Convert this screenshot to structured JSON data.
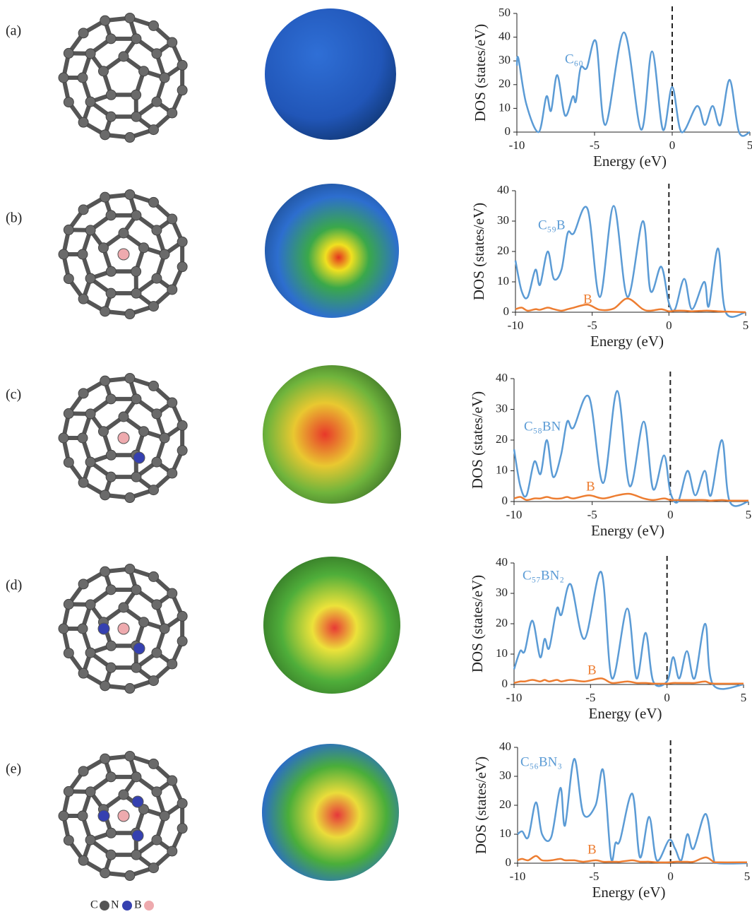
{
  "panels": [
    "(a)",
    "(b)",
    "(c)",
    "(d)",
    "(e)"
  ],
  "atom_legend": [
    "C",
    "N",
    "B"
  ],
  "chart_data": [
    {
      "type": "line",
      "xlabel": "Energy (eV)",
      "ylabel": "DOS (states/eV)",
      "xlim": [
        -10,
        5
      ],
      "xticks": [
        -10,
        -5,
        0,
        5
      ],
      "ylim": [
        0,
        50
      ],
      "yticks": [
        0,
        10,
        20,
        30,
        40,
        50
      ],
      "vline": 0,
      "x": [
        -10,
        -9.9,
        -9.4,
        -8.6,
        -8.1,
        -7.8,
        -7.4,
        -6.9,
        -6.4,
        -6.2,
        -5.9,
        -5.5,
        -4.9,
        -4.3,
        -3.1,
        -2.0,
        -1.3,
        -0.6,
        0,
        0.6,
        1.6,
        2.1,
        2.6,
        3.1,
        3.7,
        4.3,
        5
      ],
      "series": [
        {
          "name": "C₆₀",
          "color": "#5b9bd5",
          "values": [
            28,
            31,
            12,
            0,
            15,
            9,
            24,
            7,
            15,
            13,
            27,
            27,
            38,
            3,
            42,
            1,
            34,
            1,
            19,
            0,
            11,
            3,
            11,
            3,
            22,
            0,
            0
          ]
        }
      ]
    },
    {
      "type": "line",
      "xlabel": "Energy (eV)",
      "ylabel": "DOS (states/eV)",
      "xlim": [
        -10,
        5
      ],
      "xticks": [
        -10,
        -5,
        0,
        5
      ],
      "ylim": [
        0,
        40
      ],
      "yticks": [
        0,
        10,
        20,
        30,
        40
      ],
      "vline": 0,
      "x": [
        -10,
        -9.6,
        -9.2,
        -8.7,
        -8.4,
        -7.9,
        -7.5,
        -7.0,
        -6.6,
        -6.2,
        -5.3,
        -4.5,
        -3.6,
        -2.7,
        -1.7,
        -1.2,
        -0.5,
        0,
        0.4,
        1.0,
        1.5,
        2.3,
        2.6,
        3.2,
        3.7,
        5
      ],
      "series": [
        {
          "name": "C₅₉B",
          "color": "#5b9bd5",
          "values": [
            17,
            7,
            5,
            14,
            9,
            20,
            11,
            14,
            26,
            26,
            34,
            5,
            35,
            5,
            30,
            7,
            15,
            3,
            1,
            11,
            1,
            10,
            2,
            21,
            0,
            0
          ]
        },
        {
          "name": "B",
          "color": "#ed7d31",
          "values": [
            1,
            1.5,
            0.5,
            1,
            0.8,
            1.5,
            1,
            0.5,
            1,
            1.5,
            2.5,
            0.8,
            1.2,
            4.5,
            1,
            0.5,
            1,
            0.3,
            0.5,
            0.5,
            0.3,
            0.5,
            0.5,
            0.3,
            0.2,
            0
          ]
        }
      ]
    },
    {
      "type": "line",
      "xlabel": "Energy (eV)",
      "ylabel": "DOS (states/eV)",
      "xlim": [
        -10,
        5
      ],
      "xticks": [
        -10,
        -5,
        0,
        5
      ],
      "ylim": [
        0,
        40
      ],
      "yticks": [
        0,
        10,
        20,
        30,
        40
      ],
      "vline": 0,
      "x": [
        -10,
        -9.6,
        -9.2,
        -8.7,
        -8.3,
        -7.9,
        -7.5,
        -7.0,
        -6.6,
        -6.2,
        -5.2,
        -4.3,
        -3.4,
        -2.6,
        -1.7,
        -1.1,
        -0.4,
        0,
        0.5,
        1.1,
        1.6,
        2.2,
        2.6,
        3.3,
        3.8,
        5
      ],
      "series": [
        {
          "name": "C₅₈BN",
          "color": "#5b9bd5",
          "values": [
            17,
            5,
            2,
            13,
            9,
            20,
            8,
            15,
            26,
            24,
            34,
            6,
            36,
            5,
            26,
            4,
            15,
            3,
            0,
            10,
            2,
            10,
            2,
            20,
            0,
            0
          ]
        },
        {
          "name": "B",
          "color": "#ed7d31",
          "values": [
            1,
            1.5,
            0.5,
            1,
            1,
            1.5,
            1,
            1,
            1.5,
            1,
            2,
            1,
            2,
            2.5,
            1,
            0.5,
            1,
            0.5,
            0.5,
            0.5,
            0.5,
            0.5,
            0.3,
            0.5,
            0.3,
            0.3
          ]
        }
      ]
    },
    {
      "type": "line",
      "xlabel": "Energy (eV)",
      "ylabel": "DOS (states/eV)",
      "xlim": [
        -10,
        5
      ],
      "xticks": [
        -10,
        -5,
        0,
        5
      ],
      "ylim": [
        0,
        40
      ],
      "yticks": [
        0,
        10,
        20,
        30,
        40
      ],
      "vline": 0,
      "x": [
        -10,
        -9.6,
        -9.3,
        -8.8,
        -8.3,
        -8.0,
        -7.7,
        -7.2,
        -6.9,
        -6.3,
        -5.4,
        -4.3,
        -3.6,
        -2.6,
        -2.0,
        -1.4,
        -0.9,
        0,
        0.4,
        0.8,
        1.3,
        1.8,
        2.5,
        3.0,
        5
      ],
      "series": [
        {
          "name": "C₅₇BN₂",
          "color": "#5b9bd5",
          "values": [
            5,
            11,
            11,
            21,
            9,
            15,
            12,
            25,
            23,
            33,
            15,
            37,
            2,
            25,
            2,
            17,
            1,
            1,
            9,
            2,
            11,
            2,
            20,
            0,
            0
          ]
        },
        {
          "name": "B",
          "color": "#ed7d31",
          "values": [
            0.5,
            1,
            1,
            1.5,
            1,
            1.5,
            1,
            1.5,
            1,
            1.5,
            1,
            2,
            0.5,
            1,
            0.5,
            0.5,
            0.3,
            0.3,
            0.5,
            0.5,
            0.5,
            0.5,
            1,
            0.3,
            0.3
          ]
        }
      ]
    },
    {
      "type": "line",
      "xlabel": "Energy (eV)",
      "ylabel": "DOS (states/eV)",
      "xlim": [
        -10,
        5
      ],
      "xticks": [
        -10,
        -5,
        0,
        5
      ],
      "ylim": [
        0,
        40
      ],
      "yticks": [
        0,
        10,
        20,
        30,
        40
      ],
      "vline": 0,
      "x": [
        -10,
        -9.7,
        -9.3,
        -8.8,
        -8.4,
        -7.8,
        -7.2,
        -6.9,
        -6.3,
        -5.7,
        -4.9,
        -4.4,
        -3.9,
        -3.6,
        -3.3,
        -2.5,
        -2.0,
        -1.4,
        -0.9,
        -0.1,
        0.3,
        0.7,
        1.1,
        1.5,
        2.3,
        2.8,
        3.1,
        5
      ],
      "series": [
        {
          "name": "C₅₆BN₃",
          "color": "#5b9bd5",
          "values": [
            10,
            11,
            9,
            21,
            10,
            9,
            26,
            13,
            36,
            17,
            20,
            32,
            2,
            7,
            8,
            24,
            2,
            16,
            1,
            8,
            5,
            1,
            10,
            5,
            17,
            2,
            0,
            0
          ]
        },
        {
          "name": "B",
          "color": "#ed7d31",
          "values": [
            1,
            1.5,
            1,
            2.5,
            1,
            1,
            1.5,
            1,
            1,
            0.5,
            1,
            0.5,
            0.5,
            0.5,
            0.5,
            1,
            0.5,
            0.5,
            0.3,
            0.3,
            0.5,
            0.5,
            0.5,
            0.5,
            2,
            0.5,
            0.3,
            0.3
          ]
        }
      ]
    }
  ]
}
